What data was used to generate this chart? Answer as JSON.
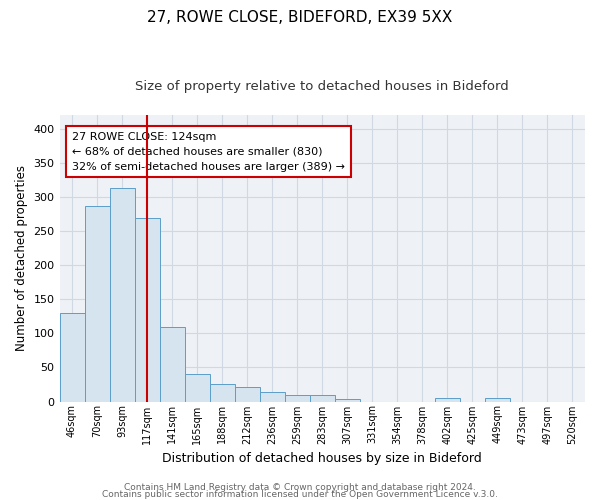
{
  "title1": "27, ROWE CLOSE, BIDEFORD, EX39 5XX",
  "title2": "Size of property relative to detached houses in Bideford",
  "xlabel": "Distribution of detached houses by size in Bideford",
  "ylabel": "Number of detached properties",
  "bin_labels": [
    "46sqm",
    "70sqm",
    "93sqm",
    "117sqm",
    "141sqm",
    "165sqm",
    "188sqm",
    "212sqm",
    "236sqm",
    "259sqm",
    "283sqm",
    "307sqm",
    "331sqm",
    "354sqm",
    "378sqm",
    "402sqm",
    "425sqm",
    "449sqm",
    "473sqm",
    "497sqm",
    "520sqm"
  ],
  "bar_values": [
    130,
    286,
    313,
    269,
    109,
    41,
    25,
    22,
    14,
    10,
    9,
    4,
    0,
    0,
    0,
    5,
    0,
    5,
    0,
    0,
    0
  ],
  "bar_color": "#d6e4f0",
  "bar_edge_color": "#5b9ec9",
  "red_line_x": 3.5,
  "annotation_text": "27 ROWE CLOSE: 124sqm\n← 68% of detached houses are smaller (830)\n32% of semi-detached houses are larger (389) →",
  "annotation_box_color": "white",
  "annotation_box_edge": "#cc0000",
  "red_line_color": "#cc0000",
  "ylim": [
    0,
    420
  ],
  "yticks": [
    0,
    50,
    100,
    150,
    200,
    250,
    300,
    350,
    400
  ],
  "footer1": "Contains HM Land Registry data © Crown copyright and database right 2024.",
  "footer2": "Contains public sector information licensed under the Open Government Licence v.3.0.",
  "background_color": "#ffffff",
  "plot_bg_color": "#eef2f7",
  "grid_color": "#d0d8e4",
  "title1_fontsize": 11,
  "title2_fontsize": 9.5,
  "xlabel_fontsize": 9,
  "ylabel_fontsize": 8.5,
  "footer_fontsize": 6.5,
  "annot_fontsize": 8
}
